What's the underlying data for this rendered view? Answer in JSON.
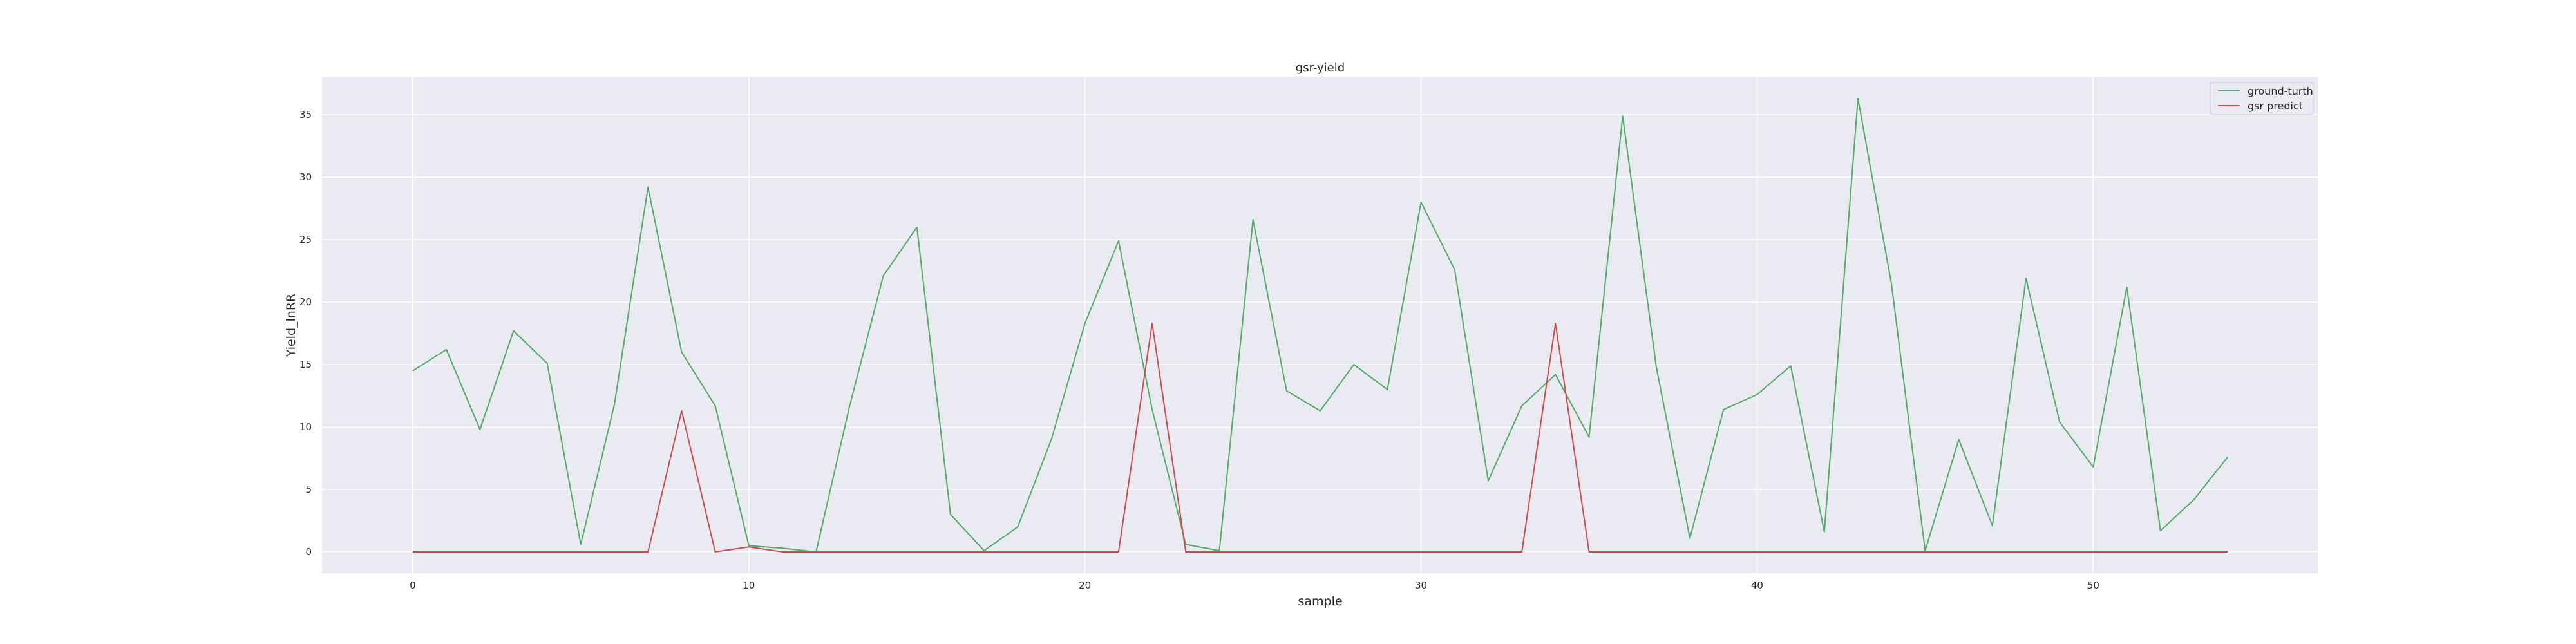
{
  "chart_data": {
    "type": "line",
    "title": "gsr-yield",
    "xlabel": "sample",
    "ylabel": "Yield_lnRR",
    "xlim": [
      -2.7,
      56.7
    ],
    "ylim": [
      -1.7,
      38.0
    ],
    "xticks": [
      0,
      10,
      20,
      30,
      40,
      50
    ],
    "yticks": [
      0,
      5,
      10,
      15,
      20,
      25,
      30,
      35
    ],
    "grid": true,
    "legend_position": "top-right",
    "background": "#eaeaf2",
    "x": [
      0,
      1,
      2,
      3,
      4,
      5,
      6,
      7,
      8,
      9,
      10,
      11,
      12,
      13,
      14,
      15,
      16,
      17,
      18,
      19,
      20,
      21,
      22,
      23,
      24,
      25,
      26,
      27,
      28,
      29,
      30,
      31,
      32,
      33,
      34,
      35,
      36,
      37,
      38,
      39,
      40,
      41,
      42,
      43,
      44,
      45,
      46,
      47,
      48,
      49,
      50,
      51,
      52,
      53,
      54
    ],
    "series": [
      {
        "name": "ground-turth",
        "color": "#55a868",
        "values": [
          14.5,
          16.2,
          9.8,
          17.7,
          15.1,
          0.6,
          11.8,
          29.2,
          16.0,
          11.7,
          0.5,
          0.3,
          0.0,
          11.7,
          22.1,
          26.0,
          3.0,
          0.1,
          2.0,
          9.0,
          18.3,
          24.9,
          11.4,
          0.6,
          0.1,
          26.6,
          12.9,
          11.3,
          15.0,
          13.0,
          28.0,
          22.6,
          5.7,
          11.7,
          14.2,
          9.2,
          34.9,
          14.8,
          1.1,
          11.4,
          12.6,
          14.9,
          1.6,
          36.3,
          21.4,
          0.1,
          9.0,
          2.1,
          21.9,
          10.4,
          6.8,
          21.2,
          1.7,
          4.2,
          7.6
        ]
      },
      {
        "name": "gsr predict",
        "color": "#c44e52",
        "values": [
          0,
          0,
          0,
          0,
          0,
          0,
          0,
          0,
          11.3,
          0,
          0.4,
          0,
          0,
          0,
          0,
          0,
          0,
          0,
          0,
          0,
          0,
          0,
          18.3,
          0,
          0,
          0,
          0,
          0,
          0,
          0,
          0,
          0,
          0,
          0,
          18.3,
          0,
          0,
          0,
          0,
          0,
          0,
          0,
          0,
          0,
          0,
          0,
          0,
          0,
          0,
          0,
          0,
          0,
          0,
          0,
          0
        ]
      }
    ]
  }
}
